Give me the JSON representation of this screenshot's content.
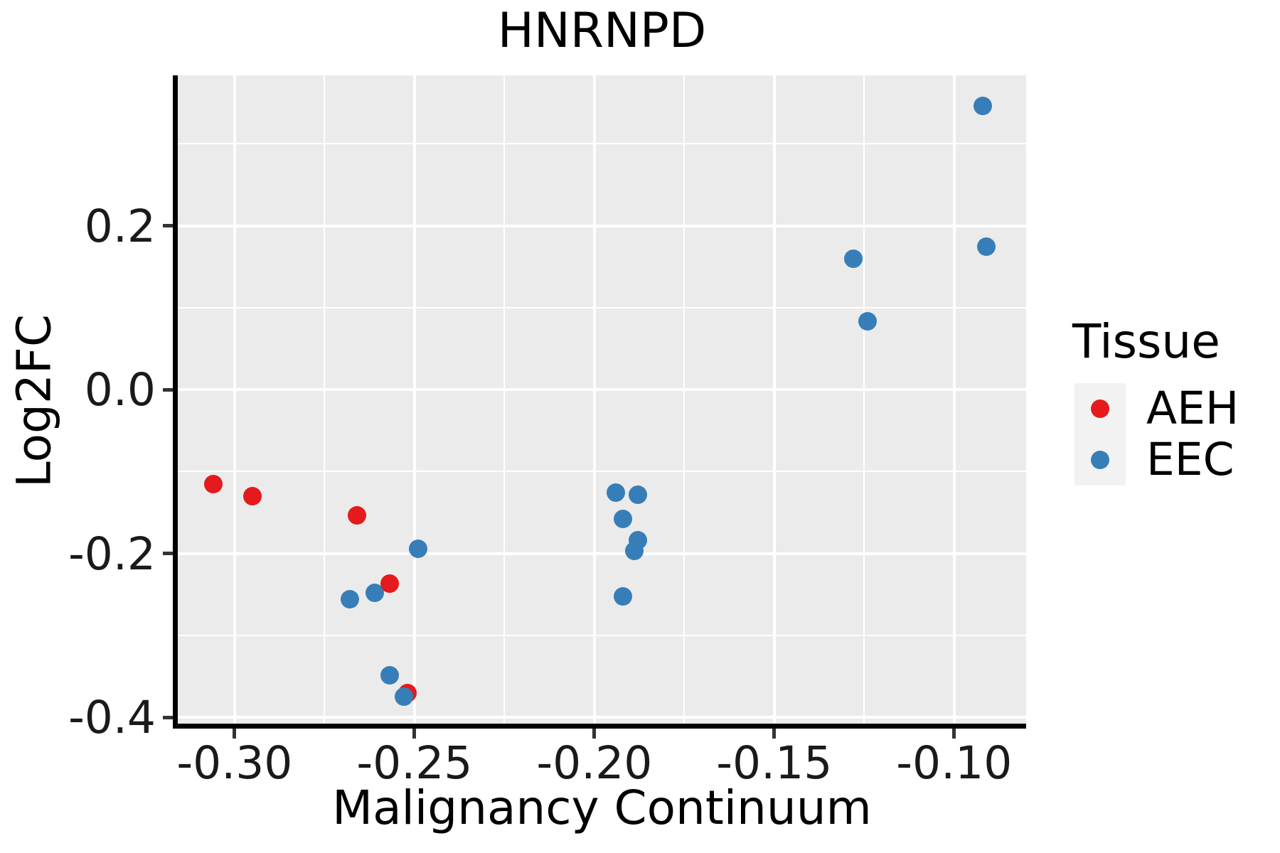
{
  "figure": {
    "title": "HNRNPD"
  },
  "chart_data": {
    "type": "scatter",
    "title": "HNRNPD",
    "xlabel": "Malignancy Continuum",
    "ylabel": "Log2FC",
    "xlim": [
      -0.3158,
      -0.08
    ],
    "ylim": [
      -0.4076,
      0.3834
    ],
    "grid": "on",
    "panel_bg": "#EBEBEB",
    "gridline_color": "#FFFFFF",
    "x_ticks": {
      "values": [
        -0.3,
        -0.25,
        -0.2,
        -0.15,
        -0.1
      ],
      "labels": [
        "-0.30",
        "-0.25",
        "-0.20",
        "-0.15",
        "-0.10"
      ],
      "minor": [
        -0.275,
        -0.225,
        -0.175,
        -0.125
      ]
    },
    "y_ticks": {
      "values": [
        0.2,
        0.0,
        -0.2,
        -0.4
      ],
      "labels": [
        "0.2",
        "0.0",
        "-0.2",
        "-0.4"
      ],
      "minor": [
        0.3,
        0.1,
        -0.1,
        -0.3
      ]
    },
    "legend": {
      "title": "Tissue",
      "position": "right",
      "key_bg": "#F2F2F2",
      "entries": [
        {
          "label": "AEH",
          "color": "#E41A1C"
        },
        {
          "label": "EEC",
          "color": "#377EB8"
        }
      ]
    },
    "series": [
      {
        "name": "AEH",
        "color": "#E41A1C",
        "points": [
          [
            -0.306,
            -0.115
          ],
          [
            -0.295,
            -0.13
          ],
          [
            -0.266,
            -0.153
          ],
          [
            -0.257,
            -0.237
          ],
          [
            -0.252,
            -0.37
          ]
        ]
      },
      {
        "name": "EEC",
        "color": "#377EB8",
        "points": [
          [
            -0.268,
            -0.256
          ],
          [
            -0.261,
            -0.248
          ],
          [
            -0.249,
            -0.194
          ],
          [
            -0.257,
            -0.349
          ],
          [
            -0.253,
            -0.375
          ],
          [
            -0.194,
            -0.126
          ],
          [
            -0.188,
            -0.128
          ],
          [
            -0.192,
            -0.158
          ],
          [
            -0.188,
            -0.184
          ],
          [
            -0.189,
            -0.197
          ],
          [
            -0.192,
            -0.252
          ],
          [
            -0.128,
            0.16
          ],
          [
            -0.124,
            0.083
          ],
          [
            -0.092,
            0.346
          ],
          [
            -0.091,
            0.174
          ]
        ]
      }
    ],
    "draw_order": [
      [
        0,
        0
      ],
      [
        0,
        1
      ],
      [
        0,
        2
      ],
      [
        1,
        0
      ],
      [
        1,
        1
      ],
      [
        0,
        3
      ],
      [
        0,
        4
      ],
      [
        1,
        2
      ],
      [
        1,
        3
      ],
      [
        1,
        4
      ],
      [
        1,
        5
      ],
      [
        1,
        6
      ],
      [
        1,
        7
      ],
      [
        1,
        8
      ],
      [
        1,
        9
      ],
      [
        1,
        10
      ],
      [
        1,
        11
      ],
      [
        1,
        12
      ],
      [
        1,
        13
      ],
      [
        1,
        14
      ]
    ]
  }
}
